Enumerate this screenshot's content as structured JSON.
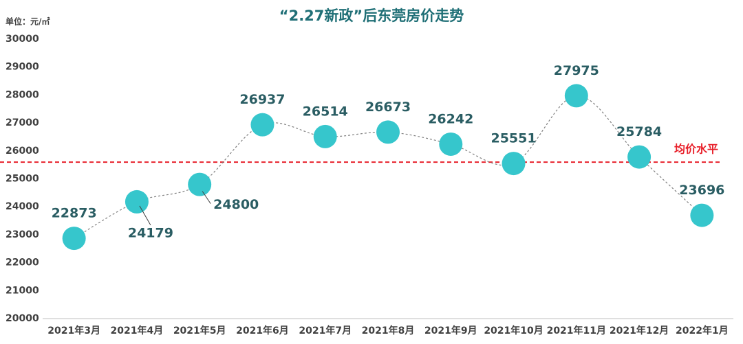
{
  "chart_data": {
    "type": "line",
    "title": "“2.27新政”后东莞房价走势",
    "y_label": "单位：元/㎡",
    "categories": [
      "2021年3月",
      "2021年4月",
      "2021年5月",
      "2021年6月",
      "2021年7月",
      "2021年8月",
      "2021年9月",
      "2021年10月",
      "2021年11月",
      "2021年12月",
      "2022年1月"
    ],
    "series": [
      {
        "name": "东莞房价",
        "color": "#36c6cc",
        "values": [
          22873,
          24179,
          24800,
          26937,
          26514,
          26673,
          26242,
          25551,
          27975,
          25784,
          23696
        ]
      }
    ],
    "ylim": [
      20000,
      30000
    ],
    "yticks": [
      20000,
      21000,
      22000,
      23000,
      24000,
      25000,
      26000,
      27000,
      28000,
      29000,
      30000
    ],
    "reference_line": {
      "value": 25600,
      "label": "均价水平",
      "color": "#e8202a"
    }
  }
}
